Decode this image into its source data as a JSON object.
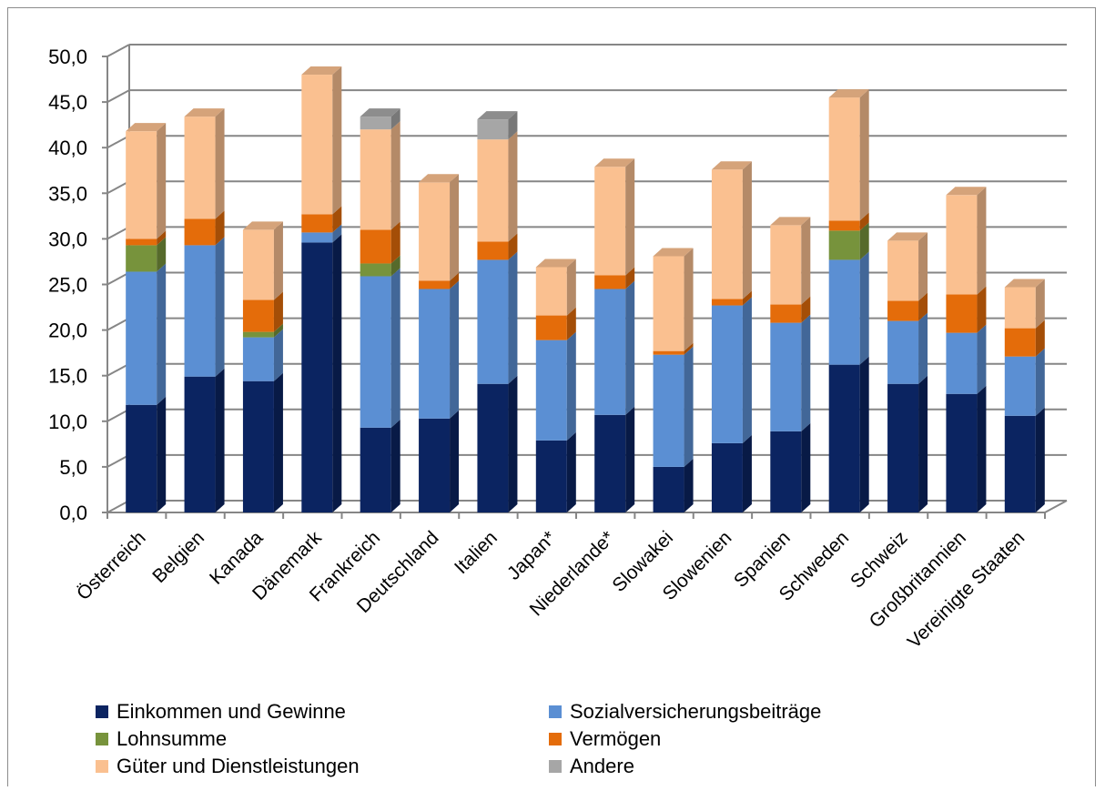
{
  "chart_data": {
    "type": "bar",
    "stacked": true,
    "three_d": true,
    "categories": [
      "Österreich",
      "Belgien",
      "Kanada",
      "Dänemark",
      "Frankreich",
      "Deutschland",
      "Italien",
      "Japan*",
      "Niederlande*",
      "Slowakei",
      "Slowenien",
      "Spanien",
      "Schweden",
      "Schweiz",
      "Großbritannien",
      "Vereinigte Staaten"
    ],
    "series": [
      {
        "name": "Einkommen und Gewinne",
        "color": "#0b2461",
        "values": [
          11.8,
          14.9,
          14.4,
          29.6,
          9.3,
          10.3,
          14.1,
          7.9,
          10.7,
          5.0,
          7.6,
          8.9,
          16.2,
          14.1,
          13.0,
          10.6
        ]
      },
      {
        "name": "Sozialversicherungsbeiträge",
        "color": "#5b8fd3",
        "values": [
          14.6,
          14.4,
          4.8,
          1.1,
          16.6,
          14.2,
          13.6,
          11.0,
          13.8,
          12.3,
          15.1,
          11.9,
          11.5,
          6.9,
          6.7,
          6.5
        ]
      },
      {
        "name": "Lohnsumme",
        "color": "#77933c",
        "values": [
          2.9,
          0.0,
          0.6,
          0.0,
          1.4,
          0.0,
          0.0,
          0.0,
          0.0,
          0.0,
          0.0,
          0.0,
          3.2,
          0.0,
          0.0,
          0.0
        ]
      },
      {
        "name": "Vermögen",
        "color": "#e46c0a",
        "values": [
          0.7,
          2.9,
          3.5,
          2.0,
          3.7,
          0.9,
          2.0,
          2.7,
          1.5,
          0.4,
          0.7,
          2.0,
          1.1,
          2.2,
          4.2,
          3.1
        ]
      },
      {
        "name": "Güter und Dienstleistungen",
        "color": "#fac090",
        "values": [
          11.8,
          11.2,
          7.7,
          15.3,
          11.0,
          10.8,
          11.2,
          5.3,
          11.9,
          10.4,
          14.2,
          8.7,
          13.5,
          6.6,
          10.9,
          4.5
        ]
      },
      {
        "name": "Andere",
        "color": "#a6a6a6",
        "values": [
          0.0,
          0.0,
          0.0,
          0.0,
          1.4,
          0.0,
          2.2,
          0.0,
          0.0,
          0.0,
          0.0,
          0.0,
          0.0,
          0.0,
          0.0,
          0.0
        ]
      }
    ],
    "ylim": [
      0,
      50
    ],
    "yticks": [
      "0,0",
      "5,0",
      "10,0",
      "15,0",
      "20,0",
      "25,0",
      "30,0",
      "35,0",
      "40,0",
      "45,0",
      "50,0"
    ],
    "grid": true,
    "legend_position": "bottom",
    "title": "",
    "xlabel": "",
    "ylabel": ""
  }
}
